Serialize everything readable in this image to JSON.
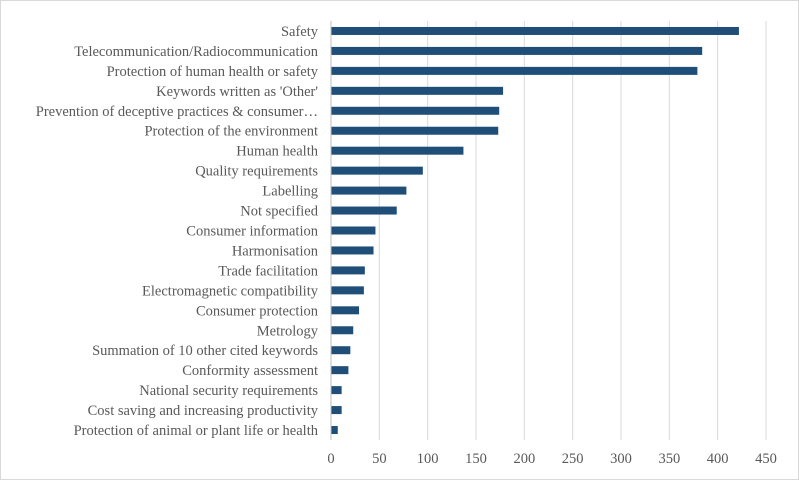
{
  "chart_data": {
    "type": "bar",
    "orientation": "horizontal",
    "title": "",
    "xlabel": "",
    "ylabel": "",
    "xlim": [
      0,
      450
    ],
    "x_ticks": [
      0,
      50,
      100,
      150,
      200,
      250,
      300,
      350,
      400,
      450
    ],
    "grid": true,
    "legend": "none",
    "bar_color": "#1f4e79",
    "categories": [
      "Safety",
      "Telecommunication/Radiocommunication",
      "Protection of human health or safety",
      "Keywords written as 'Other'",
      "Prevention of deceptive practices & consumer…",
      "Protection of the environment",
      "Human health",
      "Quality requirements",
      "Labelling",
      "Not specified",
      "Consumer information",
      "Harmonisation",
      "Trade facilitation",
      "Electromagnetic compatibility",
      "Consumer protection",
      "Metrology",
      "Summation of 10 other cited keywords",
      "Conformity assessment",
      "National security requirements",
      "Cost saving and increasing productivity",
      "Protection of animal or plant life or health"
    ],
    "values": [
      422,
      384,
      379,
      178,
      174,
      173,
      137,
      95,
      78,
      68,
      46,
      44,
      35,
      34,
      29,
      23,
      20,
      18,
      11,
      11,
      7
    ]
  }
}
